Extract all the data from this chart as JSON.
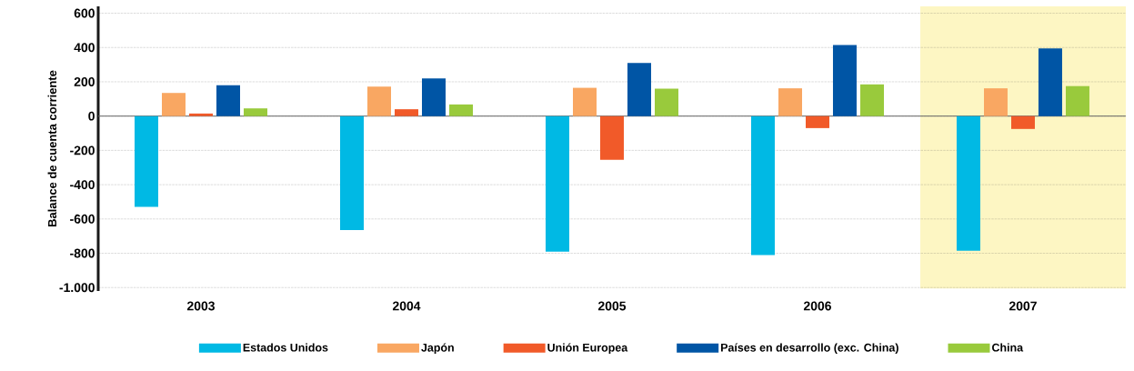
{
  "chart_data": {
    "type": "bar",
    "ylabel": "Balance de cuenta corriente",
    "categories": [
      "2003",
      "2004",
      "2005",
      "2006",
      "2007"
    ],
    "series": [
      {
        "name": "Estados Unidos",
        "color": "#00b9e4",
        "values": [
          -530,
          -665,
          -790,
          -810,
          -785
        ]
      },
      {
        "name": "Japón",
        "color": "#f9a762",
        "values": [
          135,
          172,
          165,
          162,
          162
        ]
      },
      {
        "name": "Unión Europea",
        "color": "#f15a29",
        "values": [
          15,
          40,
          -255,
          -70,
          -75
        ]
      },
      {
        "name": "Países en desarrollo (exc. China)",
        "color": "#0055a5",
        "values": [
          180,
          220,
          310,
          415,
          395
        ]
      },
      {
        "name": "China",
        "color": "#99ca3c",
        "values": [
          45,
          68,
          160,
          185,
          175
        ]
      }
    ],
    "ylim": [
      -1020,
      640
    ],
    "yticks": [
      {
        "value": -1000,
        "label": "-1.000"
      },
      -800,
      -600,
      -400,
      -200,
      0,
      200,
      400,
      600
    ],
    "bands": [
      {
        "axis": "x",
        "from": "2007",
        "to": "2007",
        "color": "#fdf6c3"
      }
    ],
    "grid": "y",
    "legend": "bottom"
  }
}
